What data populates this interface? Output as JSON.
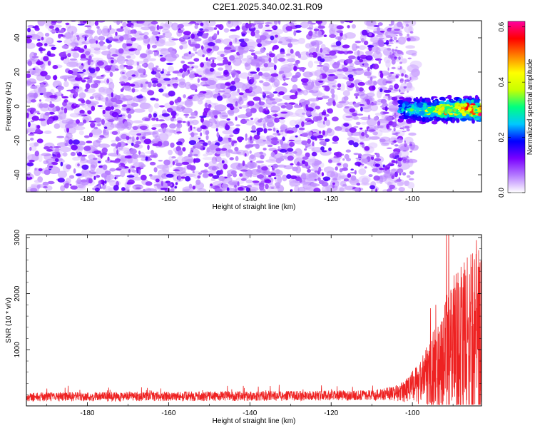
{
  "title": "C2E1.2025.340.02.31.R09",
  "chart_data": [
    {
      "type": "heatmap",
      "panel": "top",
      "xlabel": "Height of straight line (km)",
      "ylabel": "Frequency (Hz)",
      "xlim": [
        -195,
        -83
      ],
      "ylim": [
        -50,
        50
      ],
      "xticks": [
        -180,
        -160,
        -140,
        -120,
        -100
      ],
      "yticks": [
        -40,
        -20,
        0,
        20,
        40
      ],
      "noise_region": {
        "x_from": -195,
        "x_to": -103,
        "y_from": -50,
        "y_to": 50,
        "amplitude_range": [
          0.05,
          0.15
        ]
      },
      "signal_band": {
        "x_from": -103,
        "x_to": -83,
        "center_frequency": -2,
        "half_width": 8,
        "amplitude_range": [
          0.1,
          0.6
        ]
      },
      "colorbar": {
        "label": "Normalized spectral amplitude",
        "range": [
          0.0,
          0.62
        ],
        "ticks": [
          0.0,
          0.2,
          0.4,
          0.6
        ],
        "tick_labels": [
          "0.0",
          "0.2",
          "0.4",
          "0.6"
        ],
        "colormap": [
          "#ffffff",
          "#b57bff",
          "#7a00ff",
          "#0000ff",
          "#00c8ff",
          "#00ff80",
          "#c8ff00",
          "#ffff00",
          "#ff8000",
          "#ff0000",
          "#ff00a0"
        ]
      }
    },
    {
      "type": "line",
      "panel": "bottom",
      "xlabel": "Height of straight line (km)",
      "ylabel": "SNR (10 * v/v)",
      "xlim": [
        -195,
        -83
      ],
      "ylim": [
        0,
        3050
      ],
      "xticks": [
        -180,
        -160,
        -140,
        -120,
        -100
      ],
      "yticks": [
        1000,
        2000,
        3000
      ],
      "series": [
        {
          "name": "SNR",
          "color": "#ee2222",
          "baseline": [
            {
              "x": -195,
              "y": 160
            },
            {
              "x": -140,
              "y": 175
            },
            {
              "x": -110,
              "y": 190
            },
            {
              "x": -103,
              "y": 230
            },
            {
              "x": -98,
              "y": 400
            },
            {
              "x": -94,
              "y": 700
            },
            {
              "x": -90,
              "y": 1000
            },
            {
              "x": -87,
              "y": 1200
            },
            {
              "x": -83,
              "y": 1300
            }
          ],
          "spread": [
            {
              "x": -195,
              "y": 80
            },
            {
              "x": -110,
              "y": 90
            },
            {
              "x": -103,
              "y": 150
            },
            {
              "x": -98,
              "y": 400
            },
            {
              "x": -94,
              "y": 800
            },
            {
              "x": -90,
              "y": 1300
            },
            {
              "x": -83,
              "y": 1600
            }
          ]
        }
      ]
    }
  ]
}
